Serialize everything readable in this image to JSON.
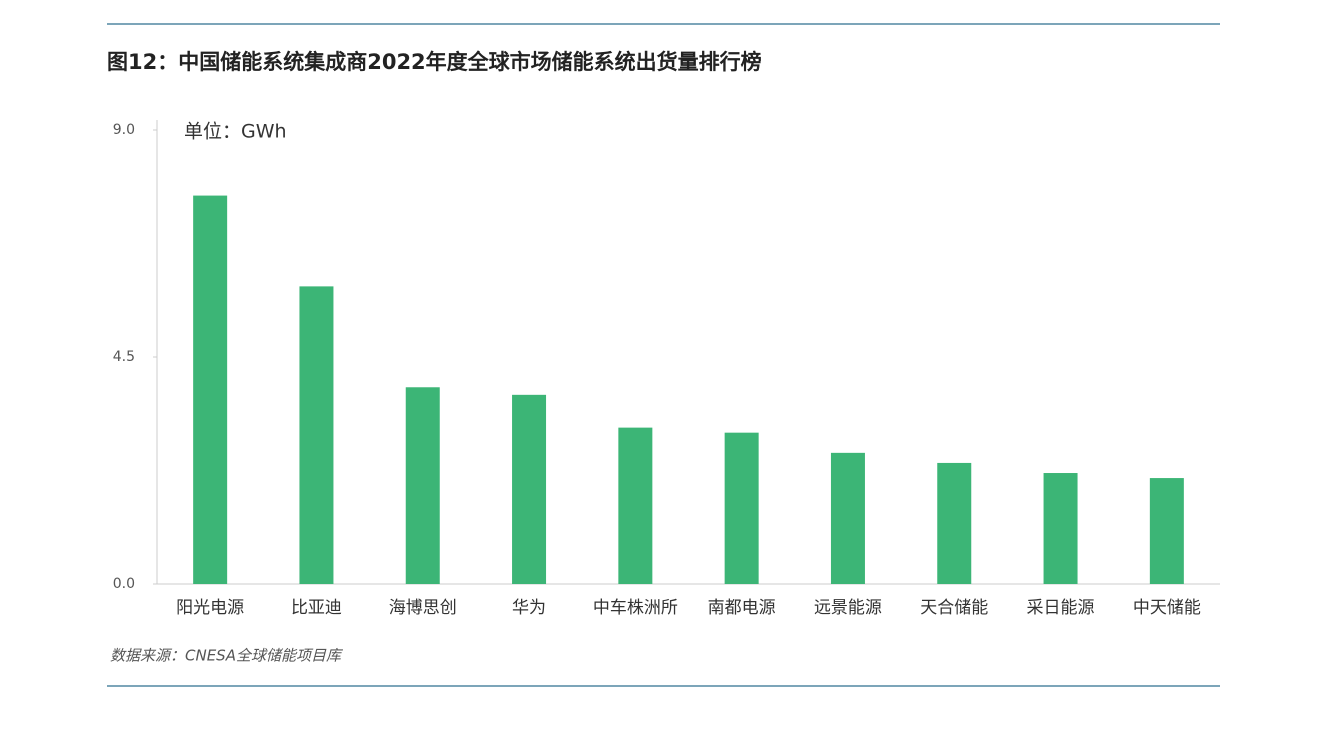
{
  "chart_data": {
    "type": "bar",
    "title": "图12：中国储能系统集成商2022年度全球市场储能系统出货量排行榜",
    "y_label": "单位：GWh",
    "source": "数据来源：CNESA全球储能项目库",
    "categories": [
      "阳光电源",
      "比亚迪",
      "海博思创",
      "华为",
      "中车株洲所",
      "南都电源",
      "远景能源",
      "天合储能",
      "采日能源",
      "中天储能"
    ],
    "values": [
      7.7,
      5.9,
      3.9,
      3.75,
      3.1,
      3.0,
      2.6,
      2.4,
      2.2,
      2.1
    ],
    "color": "#3cb576",
    "ylim": [
      0,
      9
    ],
    "yticks": [
      {
        "value": 0,
        "label": "0.0"
      },
      4.5,
      {
        "value": 9,
        "label": "9.0"
      }
    ],
    "grid": false
  }
}
